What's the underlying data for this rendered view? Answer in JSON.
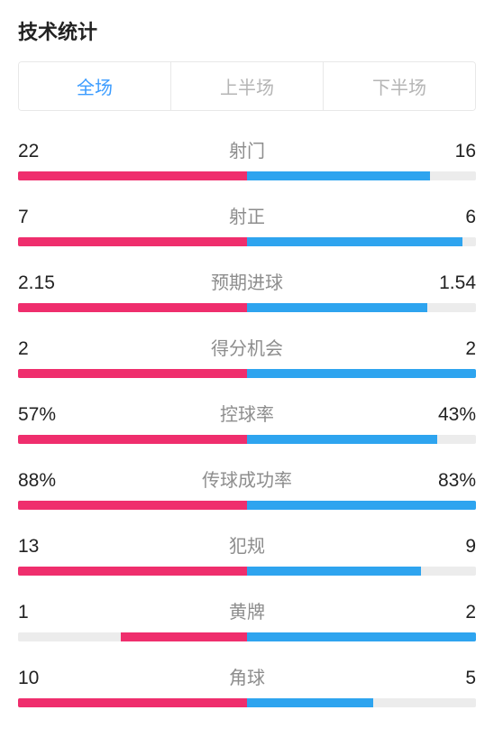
{
  "title": "技术统计",
  "colors": {
    "home": "#ef2e6d",
    "away": "#2ea4ef",
    "track": "#ececec",
    "text": "#222222",
    "muted": "#8d8d8d",
    "tab_active": "#3b9cff",
    "tab_inactive": "#b5b5b5",
    "border": "#e8e8e8"
  },
  "tabs": [
    {
      "label": "全场",
      "active": true
    },
    {
      "label": "上半场",
      "active": false
    },
    {
      "label": "下半场",
      "active": false
    }
  ],
  "bar_scale_percent": 55,
  "stats": [
    {
      "name": "射门",
      "home": "22",
      "away": "16",
      "home_n": 22,
      "away_n": 16
    },
    {
      "name": "射正",
      "home": "7",
      "away": "6",
      "home_n": 7,
      "away_n": 6
    },
    {
      "name": "预期进球",
      "home": "2.15",
      "away": "1.54",
      "home_n": 2.15,
      "away_n": 1.54
    },
    {
      "name": "得分机会",
      "home": "2",
      "away": "2",
      "home_n": 2,
      "away_n": 2
    },
    {
      "name": "控球率",
      "home": "57%",
      "away": "43%",
      "home_n": 57,
      "away_n": 43
    },
    {
      "name": "传球成功率",
      "home": "88%",
      "away": "83%",
      "home_n": 88,
      "away_n": 83
    },
    {
      "name": "犯规",
      "home": "13",
      "away": "9",
      "home_n": 13,
      "away_n": 9
    },
    {
      "name": "黄牌",
      "home": "1",
      "away": "2",
      "home_n": 1,
      "away_n": 2
    },
    {
      "name": "角球",
      "home": "10",
      "away": "5",
      "home_n": 10,
      "away_n": 5
    }
  ]
}
